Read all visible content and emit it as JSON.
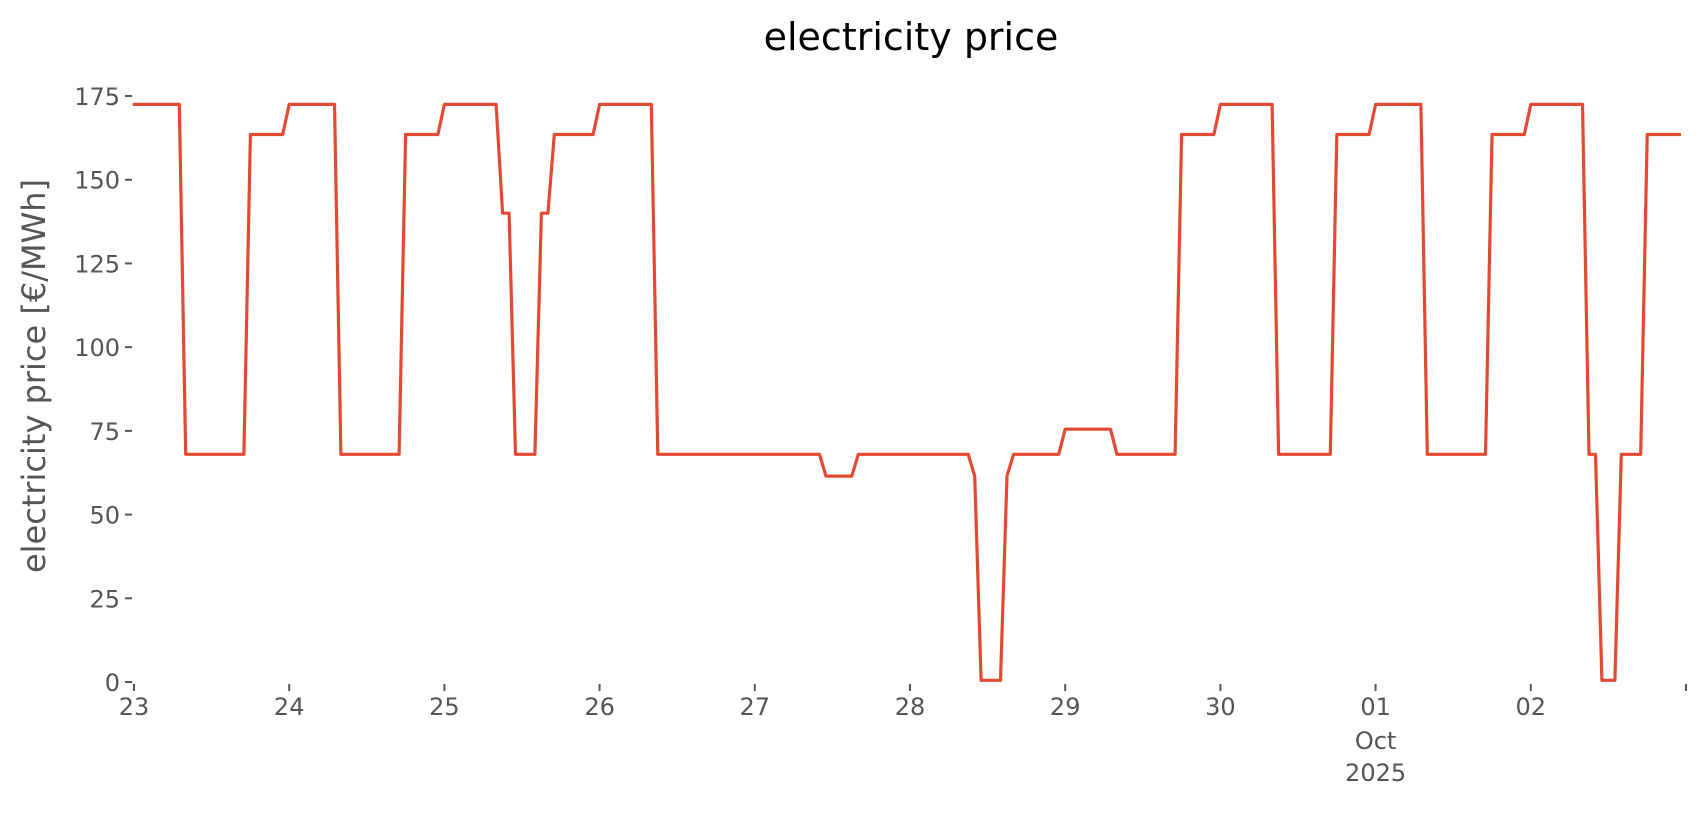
{
  "chart_data": {
    "type": "line",
    "title": "electricity price",
    "xlabel": "",
    "ylabel": "electricity price [€/MWh]",
    "ylim": [
      0,
      175
    ],
    "xlim": [
      "2025-09-23T00:00",
      "2025-10-02T23:00"
    ],
    "grid": false,
    "legend": "none",
    "yticks": [
      0,
      25,
      50,
      75,
      100,
      125,
      150,
      175
    ],
    "xticks": [
      {
        "date": "2025-09-23T00:00",
        "label": "23"
      },
      {
        "date": "2025-09-24T00:00",
        "label": "24"
      },
      {
        "date": "2025-09-25T00:00",
        "label": "25"
      },
      {
        "date": "2025-09-26T00:00",
        "label": "26"
      },
      {
        "date": "2025-09-27T00:00",
        "label": "27"
      },
      {
        "date": "2025-09-28T00:00",
        "label": "28"
      },
      {
        "date": "2025-09-29T00:00",
        "label": "29"
      },
      {
        "date": "2025-09-30T00:00",
        "label": "30"
      },
      {
        "date": "2025-10-01T00:00",
        "label": "01"
      },
      {
        "date": "2025-10-02T00:00",
        "label": "02"
      },
      {
        "date": "2025-10-03T00:00",
        "label": ""
      }
    ],
    "x_secondary_label": [
      "Oct",
      "2025"
    ],
    "series": [
      {
        "color": "#E24A33",
        "points": [
          [
            "2025-09-23T00:00",
            172.5
          ],
          [
            "2025-09-23T07:00",
            172.5
          ],
          [
            "2025-09-23T08:00",
            68
          ],
          [
            "2025-09-23T17:00",
            68
          ],
          [
            "2025-09-23T18:00",
            163.5
          ],
          [
            "2025-09-23T23:00",
            163.5
          ],
          [
            "2025-09-24T00:00",
            172.5
          ],
          [
            "2025-09-24T07:00",
            172.5
          ],
          [
            "2025-09-24T08:00",
            68
          ],
          [
            "2025-09-24T17:00",
            68
          ],
          [
            "2025-09-24T18:00",
            163.5
          ],
          [
            "2025-09-24T23:00",
            163.5
          ],
          [
            "2025-09-25T00:00",
            172.5
          ],
          [
            "2025-09-25T08:00",
            172.5
          ],
          [
            "2025-09-25T09:00",
            140
          ],
          [
            "2025-09-25T10:00",
            140
          ],
          [
            "2025-09-25T11:00",
            68
          ],
          [
            "2025-09-25T14:00",
            68
          ],
          [
            "2025-09-25T15:00",
            140
          ],
          [
            "2025-09-25T16:00",
            140
          ],
          [
            "2025-09-25T17:00",
            163.5
          ],
          [
            "2025-09-25T23:00",
            163.5
          ],
          [
            "2025-09-26T00:00",
            172.5
          ],
          [
            "2025-09-26T08:00",
            172.5
          ],
          [
            "2025-09-26T09:00",
            68
          ],
          [
            "2025-09-27T10:00",
            68
          ],
          [
            "2025-09-27T11:00",
            61.5
          ],
          [
            "2025-09-27T15:00",
            61.5
          ],
          [
            "2025-09-27T16:00",
            68
          ],
          [
            "2025-09-28T09:00",
            68
          ],
          [
            "2025-09-28T10:00",
            61.5
          ],
          [
            "2025-09-28T11:00",
            0.5
          ],
          [
            "2025-09-28T14:00",
            0.5
          ],
          [
            "2025-09-28T15:00",
            61.5
          ],
          [
            "2025-09-28T16:00",
            68
          ],
          [
            "2025-09-28T23:00",
            68
          ],
          [
            "2025-09-29T00:00",
            75.5
          ],
          [
            "2025-09-29T07:00",
            75.5
          ],
          [
            "2025-09-29T08:00",
            68
          ],
          [
            "2025-09-29T17:00",
            68
          ],
          [
            "2025-09-29T18:00",
            163.5
          ],
          [
            "2025-09-29T23:00",
            163.5
          ],
          [
            "2025-09-30T00:00",
            172.5
          ],
          [
            "2025-09-30T08:00",
            172.5
          ],
          [
            "2025-09-30T09:00",
            68
          ],
          [
            "2025-09-30T17:00",
            68
          ],
          [
            "2025-09-30T18:00",
            163.5
          ],
          [
            "2025-09-30T23:00",
            163.5
          ],
          [
            "2025-10-01T00:00",
            172.5
          ],
          [
            "2025-10-01T07:00",
            172.5
          ],
          [
            "2025-10-01T08:00",
            68
          ],
          [
            "2025-10-01T17:00",
            68
          ],
          [
            "2025-10-01T18:00",
            163.5
          ],
          [
            "2025-10-01T23:00",
            163.5
          ],
          [
            "2025-10-02T00:00",
            172.5
          ],
          [
            "2025-10-02T08:00",
            172.5
          ],
          [
            "2025-10-02T09:00",
            68
          ],
          [
            "2025-10-02T10:00",
            68
          ],
          [
            "2025-10-02T11:00",
            0.5
          ],
          [
            "2025-10-02T13:00",
            0.5
          ],
          [
            "2025-10-02T14:00",
            68
          ],
          [
            "2025-10-02T17:00",
            68
          ],
          [
            "2025-10-02T18:00",
            163.5
          ],
          [
            "2025-10-02T23:00",
            163.5
          ]
        ]
      }
    ]
  }
}
